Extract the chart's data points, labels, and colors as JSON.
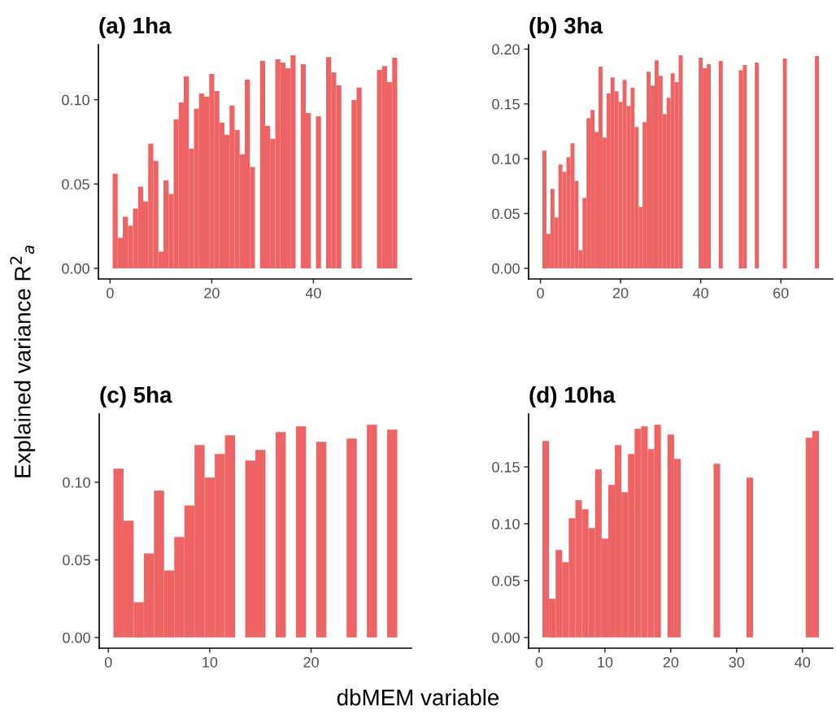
{
  "chart_data": [
    {
      "type": "bar",
      "title": "(a) 1ha",
      "xlabel": "dbMEM variable",
      "ylabel": "Explained variance R$^{2}$$_{a}$",
      "color": "#ee6464",
      "grid": false,
      "legend": false,
      "x": [
        1,
        2,
        3,
        4,
        5,
        6,
        7,
        8,
        9,
        10,
        11,
        12,
        13,
        14,
        15,
        16,
        17,
        18,
        19,
        20,
        21,
        22,
        23,
        24,
        25,
        26,
        27,
        28,
        30,
        31,
        32,
        33,
        34,
        35,
        36,
        38,
        39,
        41,
        43,
        44,
        45,
        48,
        49,
        53,
        54,
        55,
        56
      ],
      "values": [
        0.0561,
        0.0181,
        0.0306,
        0.0253,
        0.0354,
        0.0484,
        0.0397,
        0.0739,
        0.0638,
        0.0099,
        0.0522,
        0.0441,
        0.0883,
        0.0984,
        0.1138,
        0.071,
        0.0946,
        0.1037,
        0.1018,
        0.1152,
        0.1051,
        0.0864,
        0.0792,
        0.0965,
        0.0821,
        0.0676,
        0.1119,
        0.0601,
        0.1229,
        0.0845,
        0.0768,
        0.1239,
        0.122,
        0.1186,
        0.1263,
        0.121,
        0.0921,
        0.0902,
        0.1253,
        0.1162,
        0.1085,
        0.0998,
        0.1071,
        0.1176,
        0.12,
        0.1104,
        0.1249
      ],
      "xlim": [
        -2.3,
        59.3
      ],
      "xticks": [
        0,
        20,
        40
      ],
      "ylim": [
        -0.0063,
        0.1326
      ],
      "yticks": [
        {
          "value": 0,
          "label": "0.00"
        },
        {
          "value": 0.05,
          "label": "0.05"
        },
        {
          "value": 0.1,
          "label": "0.10"
        }
      ]
    },
    {
      "type": "bar",
      "title": "(b) 3ha",
      "color": "#ee6464",
      "grid": false,
      "legend": false,
      "x": [
        1,
        2,
        3,
        4,
        5,
        6,
        7,
        8,
        9,
        10,
        11,
        12,
        13,
        14,
        15,
        16,
        17,
        18,
        19,
        20,
        21,
        22,
        23,
        24,
        25,
        26,
        27,
        28,
        29,
        30,
        31,
        32,
        33,
        34,
        35,
        40,
        41,
        42,
        45,
        50,
        51,
        54,
        61,
        69
      ],
      "values": [
        0.1073,
        0.0315,
        0.0724,
        0.0463,
        0.0947,
        0.088,
        0.1014,
        0.114,
        0.0798,
        0.0166,
        0.0642,
        0.1371,
        0.1445,
        0.1244,
        0.1839,
        0.1192,
        0.1594,
        0.1742,
        0.1616,
        0.1519,
        0.172,
        0.1482,
        0.1646,
        0.1289,
        0.056,
        0.1333,
        0.1794,
        0.1668,
        0.1898,
        0.1757,
        0.1408,
        0.1556,
        0.1779,
        0.1698,
        0.1943,
        0.1921,
        0.1824,
        0.1861,
        0.1891,
        0.1809,
        0.1854,
        0.1876,
        0.1913,
        0.1936
      ],
      "xlim": [
        -2.95,
        72.95
      ],
      "xticks": [
        0,
        20,
        40,
        60
      ],
      "ylim": [
        -0.0097,
        0.204
      ],
      "yticks": [
        {
          "value": 0,
          "label": "0.00"
        },
        {
          "value": 0.05,
          "label": "0.05"
        },
        {
          "value": 0.1,
          "label": "0.10"
        },
        {
          "value": 0.15,
          "label": "0.15"
        },
        {
          "value": 0.2,
          "label": "0.20"
        }
      ]
    },
    {
      "type": "bar",
      "title": "(c) 5ha",
      "color": "#ee6464",
      "grid": false,
      "legend": false,
      "x": [
        1,
        2,
        3,
        4,
        5,
        6,
        7,
        8,
        9,
        10,
        11,
        12,
        14,
        15,
        17,
        19,
        21,
        24,
        26,
        28
      ],
      "values": [
        0.1087,
        0.0752,
        0.0227,
        0.0542,
        0.0946,
        0.0432,
        0.0647,
        0.0851,
        0.124,
        0.103,
        0.1182,
        0.1302,
        0.114,
        0.1208,
        0.1323,
        0.136,
        0.126,
        0.1281,
        0.1371,
        0.1339
      ],
      "xlim": [
        -0.9,
        29.9
      ],
      "xticks": [
        0,
        10,
        20
      ],
      "ylim": [
        -0.0069,
        0.144
      ],
      "yticks": [
        {
          "value": 0,
          "label": "0.00"
        },
        {
          "value": 0.05,
          "label": "0.05"
        },
        {
          "value": 0.1,
          "label": "0.10"
        }
      ]
    },
    {
      "type": "bar",
      "title": "(d) 10ha",
      "color": "#ee6464",
      "grid": false,
      "legend": false,
      "x": [
        1,
        2,
        3,
        4,
        5,
        6,
        7,
        8,
        9,
        10,
        11,
        12,
        13,
        14,
        15,
        16,
        17,
        18,
        20,
        21,
        27,
        32,
        41,
        42
      ],
      "values": [
        0.1729,
        0.0341,
        0.077,
        0.0663,
        0.1049,
        0.1207,
        0.1128,
        0.0963,
        0.1478,
        0.087,
        0.1342,
        0.1693,
        0.1278,
        0.1614,
        0.1836,
        0.1857,
        0.1657,
        0.1872,
        0.1786,
        0.1571,
        0.1528,
        0.1407,
        0.1757,
        0.1815
      ],
      "xlim": [
        -1.6,
        44.6
      ],
      "xticks": [
        0,
        10,
        20,
        30,
        40
      ],
      "ylim": [
        -0.0094,
        0.1966
      ],
      "yticks": [
        {
          "value": 0,
          "label": "0.00"
        },
        {
          "value": 0.05,
          "label": "0.05"
        },
        {
          "value": 0.1,
          "label": "0.10"
        },
        {
          "value": 0.15,
          "label": "0.15"
        }
      ]
    }
  ]
}
